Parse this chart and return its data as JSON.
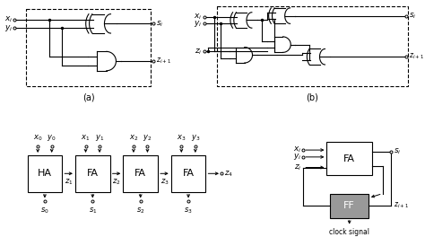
{
  "bg_color": "#ffffff",
  "lc": "black",
  "lw": 0.8,
  "fig_w": 4.74,
  "fig_h": 2.74,
  "dpi": 100,
  "subtitle_a": "(a)",
  "subtitle_b": "(b)",
  "labels": {
    "xi": "$x_i$",
    "yi": "$y_i$",
    "zi": "$z_i$",
    "si": "$s_i$",
    "zi1": "$z_{i+1}$",
    "x0": "$x_0$",
    "y0": "$y_0$",
    "x1": "$x_1$",
    "y1": "$y_1$",
    "x2": "$x_2$",
    "y2": "$y_2$",
    "x3": "$x_3$",
    "y3": "$y_3$",
    "z1": "$z_1$",
    "z2": "$z_2$",
    "z3": "$z_3$",
    "z4": "$z_4$",
    "s0": "$s_0$",
    "s1": "$s_1$",
    "s2": "$s_2$",
    "s3": "$s_3$",
    "HA": "HA",
    "FA": "FA",
    "FF": "FF",
    "clock": "clock signal"
  },
  "ff_color": "#999999"
}
